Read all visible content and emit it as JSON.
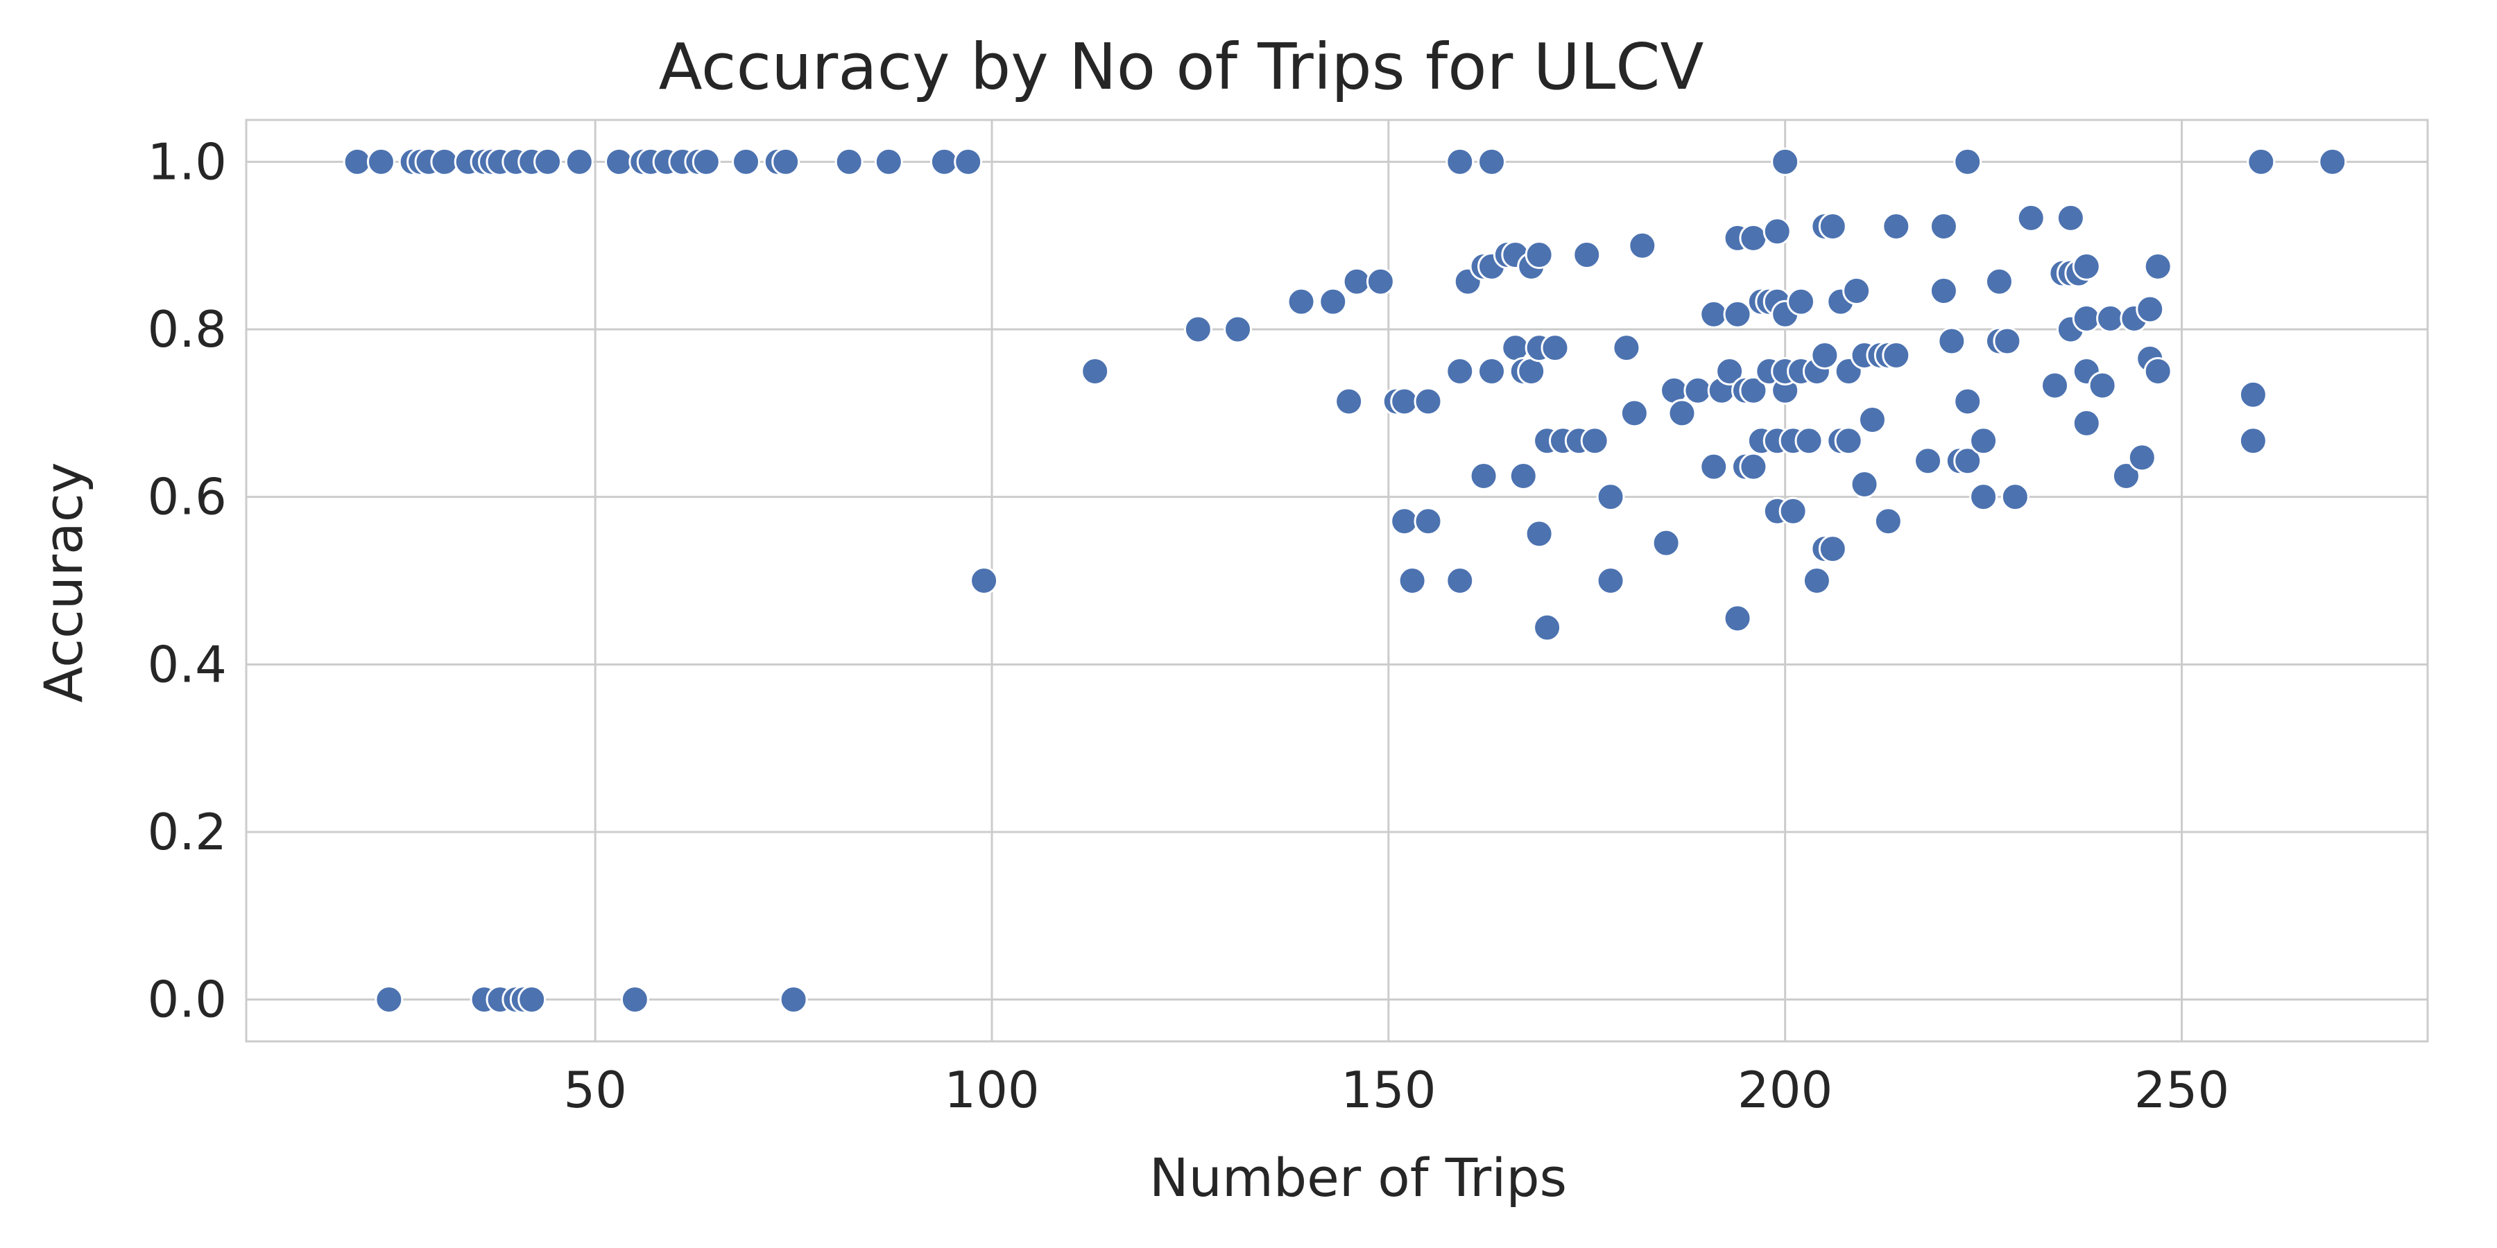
{
  "chart_data": {
    "type": "scatter",
    "title": "Accuracy by No of Trips for ULCV",
    "xlabel": "Number of Trips",
    "ylabel": "Accuracy",
    "xlim": [
      6,
      281
    ],
    "ylim": [
      -0.05,
      1.05
    ],
    "xticks": [
      50,
      100,
      150,
      200,
      250
    ],
    "yticks": [
      0.0,
      0.2,
      0.4,
      0.6,
      0.8,
      1.0
    ],
    "xtick_labels": [
      "50",
      "100",
      "150",
      "200",
      "250"
    ],
    "ytick_labels": [
      "0.0",
      "0.2",
      "0.4",
      "0.6",
      "0.8",
      "1.0"
    ],
    "grid": true,
    "marker_color": "#4c72b0",
    "series": [
      {
        "points": [
          [
            20,
            1.0
          ],
          [
            23,
            1.0
          ],
          [
            27,
            1.0
          ],
          [
            28,
            1.0
          ],
          [
            29,
            1.0
          ],
          [
            31,
            1.0
          ],
          [
            34,
            1.0
          ],
          [
            36,
            1.0
          ],
          [
            37,
            1.0
          ],
          [
            38,
            1.0
          ],
          [
            40,
            1.0
          ],
          [
            42,
            1.0
          ],
          [
            44,
            1.0
          ],
          [
            48,
            1.0
          ],
          [
            53,
            1.0
          ],
          [
            56,
            1.0
          ],
          [
            57,
            1.0
          ],
          [
            59,
            1.0
          ],
          [
            61,
            1.0
          ],
          [
            63,
            1.0
          ],
          [
            64,
            1.0
          ],
          [
            69,
            1.0
          ],
          [
            73,
            1.0
          ],
          [
            74,
            1.0
          ],
          [
            82,
            1.0
          ],
          [
            87,
            1.0
          ],
          [
            94,
            1.0
          ],
          [
            97,
            1.0
          ],
          [
            159,
            1.0
          ],
          [
            163,
            1.0
          ],
          [
            200,
            1.0
          ],
          [
            223,
            1.0
          ],
          [
            260,
            1.0
          ],
          [
            269,
            1.0
          ],
          [
            24,
            0.0
          ],
          [
            36,
            0.0
          ],
          [
            38,
            0.0
          ],
          [
            40,
            0.0
          ],
          [
            41,
            0.0
          ],
          [
            42,
            0.0
          ],
          [
            55,
            0.0
          ],
          [
            75,
            0.0
          ],
          [
            99,
            0.5
          ],
          [
            113,
            0.75
          ],
          [
            126,
            0.8
          ],
          [
            131,
            0.8
          ],
          [
            139,
            0.833
          ],
          [
            143,
            0.833
          ],
          [
            146,
            0.857
          ],
          [
            149,
            0.857
          ],
          [
            145,
            0.714
          ],
          [
            151,
            0.714
          ],
          [
            152,
            0.714
          ],
          [
            155,
            0.714
          ],
          [
            152,
            0.571
          ],
          [
            155,
            0.571
          ],
          [
            153,
            0.5
          ],
          [
            159,
            0.5
          ],
          [
            159,
            0.75
          ],
          [
            160,
            0.857
          ],
          [
            162,
            0.875
          ],
          [
            163,
            0.875
          ],
          [
            165,
            0.889
          ],
          [
            166,
            0.889
          ],
          [
            168,
            0.875
          ],
          [
            169,
            0.889
          ],
          [
            162,
            0.625
          ],
          [
            163,
            0.75
          ],
          [
            166,
            0.778
          ],
          [
            167,
            0.75
          ],
          [
            168,
            0.75
          ],
          [
            169,
            0.778
          ],
          [
            171,
            0.778
          ],
          [
            167,
            0.625
          ],
          [
            169,
            0.556
          ],
          [
            170,
            0.444
          ],
          [
            170,
            0.667
          ],
          [
            172,
            0.667
          ],
          [
            174,
            0.667
          ],
          [
            176,
            0.667
          ],
          [
            175,
            0.889
          ],
          [
            178,
            0.6
          ],
          [
            178,
            0.5
          ],
          [
            180,
            0.778
          ],
          [
            181,
            0.7
          ],
          [
            182,
            0.9
          ],
          [
            185,
            0.545
          ],
          [
            186,
            0.727
          ],
          [
            187,
            0.7
          ],
          [
            189,
            0.727
          ],
          [
            191,
            0.818
          ],
          [
            191,
            0.636
          ],
          [
            192,
            0.727
          ],
          [
            193,
            0.75
          ],
          [
            194,
            0.909
          ],
          [
            194,
            0.818
          ],
          [
            194,
            0.455
          ],
          [
            195,
            0.636
          ],
          [
            195,
            0.727
          ],
          [
            196,
            0.909
          ],
          [
            196,
            0.636
          ],
          [
            196,
            0.727
          ],
          [
            197,
            0.833
          ],
          [
            197,
            0.667
          ],
          [
            198,
            0.833
          ],
          [
            198,
            0.75
          ],
          [
            199,
            0.917
          ],
          [
            199,
            0.583
          ],
          [
            199,
            0.833
          ],
          [
            199,
            0.667
          ],
          [
            200,
            0.727
          ],
          [
            200,
            0.818
          ],
          [
            200,
            0.75
          ],
          [
            201,
            0.583
          ],
          [
            201,
            0.667
          ],
          [
            202,
            0.833
          ],
          [
            202,
            0.75
          ],
          [
            203,
            0.667
          ],
          [
            204,
            0.5
          ],
          [
            204,
            0.75
          ],
          [
            205,
            0.923
          ],
          [
            205,
            0.769
          ],
          [
            205,
            0.538
          ],
          [
            206,
            0.923
          ],
          [
            206,
            0.538
          ],
          [
            207,
            0.833
          ],
          [
            207,
            0.667
          ],
          [
            208,
            0.75
          ],
          [
            208,
            0.667
          ],
          [
            209,
            0.846
          ],
          [
            210,
            0.769
          ],
          [
            210,
            0.615
          ],
          [
            211,
            0.692
          ],
          [
            212,
            0.769
          ],
          [
            213,
            0.769
          ],
          [
            213,
            0.571
          ],
          [
            214,
            0.923
          ],
          [
            214,
            0.769
          ],
          [
            218,
            0.643
          ],
          [
            220,
            0.923
          ],
          [
            220,
            0.846
          ],
          [
            221,
            0.786
          ],
          [
            222,
            0.643
          ],
          [
            223,
            0.714
          ],
          [
            223,
            0.643
          ],
          [
            225,
            0.667
          ],
          [
            225,
            0.6
          ],
          [
            227,
            0.857
          ],
          [
            227,
            0.786
          ],
          [
            228,
            0.786
          ],
          [
            229,
            0.6
          ],
          [
            231,
            0.933
          ],
          [
            234,
            0.733
          ],
          [
            235,
            0.867
          ],
          [
            236,
            0.933
          ],
          [
            236,
            0.867
          ],
          [
            236,
            0.8
          ],
          [
            237,
            0.867
          ],
          [
            238,
            0.875
          ],
          [
            238,
            0.813
          ],
          [
            238,
            0.75
          ],
          [
            238,
            0.688
          ],
          [
            240,
            0.733
          ],
          [
            241,
            0.813
          ],
          [
            243,
            0.625
          ],
          [
            244,
            0.813
          ],
          [
            245,
            0.647
          ],
          [
            246,
            0.824
          ],
          [
            246,
            0.765
          ],
          [
            247,
            0.875
          ],
          [
            247,
            0.75
          ],
          [
            259,
            0.722
          ],
          [
            259,
            0.667
          ]
        ]
      }
    ]
  }
}
